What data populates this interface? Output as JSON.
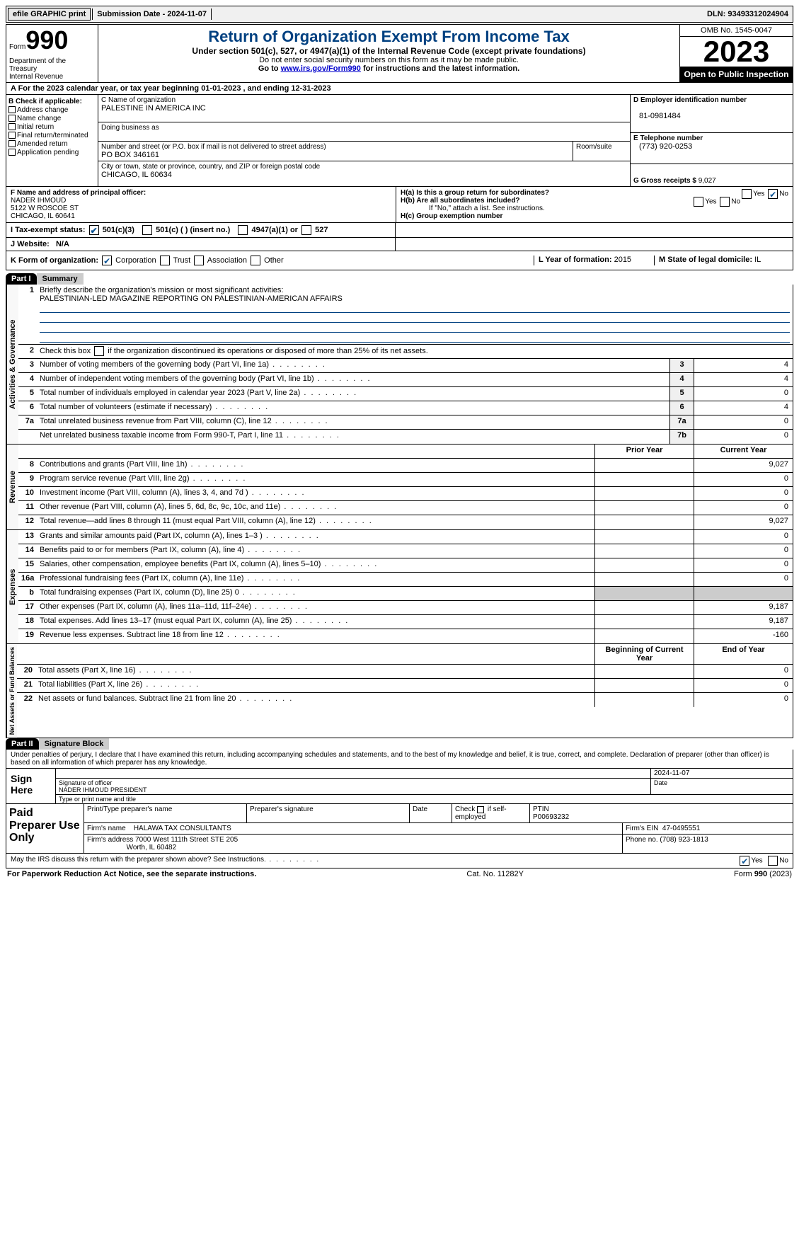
{
  "topbar": {
    "efile": "efile GRAPHIC print",
    "submission": "Submission Date - 2024-11-07",
    "dln": "DLN: 93493312024904"
  },
  "header": {
    "form_label": "Form",
    "form_num": "990",
    "dept": "Department of the Treasury\nInternal Revenue Service",
    "title": "Return of Organization Exempt From Income Tax",
    "sub1": "Under section 501(c), 527, or 4947(a)(1) of the Internal Revenue Code (except private foundations)",
    "sub2": "Do not enter social security numbers on this form as it may be made public.",
    "sub3_pre": "Go to ",
    "sub3_link": "www.irs.gov/Form990",
    "sub3_post": " for instructions and the latest information.",
    "omb": "OMB No. 1545-0047",
    "year": "2023",
    "open": "Open to Public Inspection"
  },
  "lineA": "A For the 2023 calendar year, or tax year beginning 01-01-2023   , and ending 12-31-2023",
  "colB": {
    "hdr": "B Check if applicable:",
    "items": [
      "Address change",
      "Name change",
      "Initial return",
      "Final return/terminated",
      "Amended return",
      "Application pending"
    ]
  },
  "colC": {
    "name_lab": "C Name of organization",
    "name": "PALESTINE IN AMERICA INC",
    "dba_lab": "Doing business as",
    "dba": "",
    "addr_lab": "Number and street (or P.O. box if mail is not delivered to street address)",
    "room_lab": "Room/suite",
    "addr": "PO BOX 346161",
    "city_lab": "City or town, state or province, country, and ZIP or foreign postal code",
    "city": "CHICAGO, IL  60634"
  },
  "colD": {
    "ein_lab": "D Employer identification number",
    "ein": "81-0981484",
    "phone_lab": "E Telephone number",
    "phone": "(773) 920-0253",
    "gross_lab": "G Gross receipts $",
    "gross": "9,027"
  },
  "secF": {
    "lab": "F  Name and address of principal officer:",
    "name": "NADER IHMOUD",
    "addr1": "5122 W ROSCOE ST",
    "addr2": "CHICAGO, IL  60641"
  },
  "secH": {
    "a": "H(a)  Is this a group return for subordinates?",
    "a_yes": "Yes",
    "a_no": "No",
    "a_checked": "no",
    "b": "H(b)  Are all subordinates included?",
    "b_yes": "Yes",
    "b_no": "No",
    "b_note": "If \"No,\" attach a list. See instructions.",
    "c": "H(c)  Group exemption number"
  },
  "rowI": {
    "lab": "I   Tax-exempt status:",
    "v1": "501(c)(3)",
    "v2": "501(c) (  ) (insert no.)",
    "v3": "4947(a)(1) or",
    "v4": "527",
    "checked": "501c3"
  },
  "rowJ": {
    "lab": "J   Website:",
    "val": "N/A"
  },
  "rowK": {
    "lab": "K Form of organization:",
    "opts": [
      "Corporation",
      "Trust",
      "Association",
      "Other"
    ],
    "checked": "Corporation"
  },
  "rowL": {
    "lab": "L Year of formation:",
    "val": "2015"
  },
  "rowM": {
    "lab": "M State of legal domicile:",
    "val": "IL"
  },
  "part1": {
    "hdr": "Part I",
    "title": "Summary"
  },
  "summary": {
    "line1_lab": "Briefly describe the organization's mission or most significant activities:",
    "line1_val": "PALESTINIAN-LED MAGAZINE REPORTING ON PALESTINIAN-AMERICAN AFFAIRS",
    "line2": "Check this box      if the organization discontinued its operations or disposed of more than 25% of its net assets.",
    "rows_gov": [
      {
        "n": "3",
        "t": "Number of voting members of the governing body (Part VI, line 1a)",
        "box": "3",
        "v": "4"
      },
      {
        "n": "4",
        "t": "Number of independent voting members of the governing body (Part VI, line 1b)",
        "box": "4",
        "v": "4"
      },
      {
        "n": "5",
        "t": "Total number of individuals employed in calendar year 2023 (Part V, line 2a)",
        "box": "5",
        "v": "0"
      },
      {
        "n": "6",
        "t": "Total number of volunteers (estimate if necessary)",
        "box": "6",
        "v": "4"
      },
      {
        "n": "7a",
        "t": "Total unrelated business revenue from Part VIII, column (C), line 12",
        "box": "7a",
        "v": "0"
      },
      {
        "n": "",
        "t": "Net unrelated business taxable income from Form 990-T, Part I, line 11",
        "box": "7b",
        "v": "0"
      }
    ],
    "hdr_prior": "Prior Year",
    "hdr_curr": "Current Year",
    "rows_rev": [
      {
        "n": "8",
        "t": "Contributions and grants (Part VIII, line 1h)",
        "p": "",
        "c": "9,027"
      },
      {
        "n": "9",
        "t": "Program service revenue (Part VIII, line 2g)",
        "p": "",
        "c": "0"
      },
      {
        "n": "10",
        "t": "Investment income (Part VIII, column (A), lines 3, 4, and 7d )",
        "p": "",
        "c": "0"
      },
      {
        "n": "11",
        "t": "Other revenue (Part VIII, column (A), lines 5, 6d, 8c, 9c, 10c, and 11e)",
        "p": "",
        "c": "0"
      },
      {
        "n": "12",
        "t": "Total revenue—add lines 8 through 11 (must equal Part VIII, column (A), line 12)",
        "p": "",
        "c": "9,027"
      }
    ],
    "rows_exp": [
      {
        "n": "13",
        "t": "Grants and similar amounts paid (Part IX, column (A), lines 1–3 )",
        "p": "",
        "c": "0"
      },
      {
        "n": "14",
        "t": "Benefits paid to or for members (Part IX, column (A), line 4)",
        "p": "",
        "c": "0"
      },
      {
        "n": "15",
        "t": "Salaries, other compensation, employee benefits (Part IX, column (A), lines 5–10)",
        "p": "",
        "c": "0"
      },
      {
        "n": "16a",
        "t": "Professional fundraising fees (Part IX, column (A), line 11e)",
        "p": "",
        "c": "0"
      },
      {
        "n": "b",
        "t": "Total fundraising expenses (Part IX, column (D), line 25) 0",
        "p": "shade",
        "c": "shade"
      },
      {
        "n": "17",
        "t": "Other expenses (Part IX, column (A), lines 11a–11d, 11f–24e)",
        "p": "",
        "c": "9,187"
      },
      {
        "n": "18",
        "t": "Total expenses. Add lines 13–17 (must equal Part IX, column (A), line 25)",
        "p": "",
        "c": "9,187"
      },
      {
        "n": "19",
        "t": "Revenue less expenses. Subtract line 18 from line 12",
        "p": "",
        "c": "-160"
      }
    ],
    "hdr_beg": "Beginning of Current Year",
    "hdr_end": "End of Year",
    "rows_net": [
      {
        "n": "20",
        "t": "Total assets (Part X, line 16)",
        "p": "",
        "c": "0"
      },
      {
        "n": "21",
        "t": "Total liabilities (Part X, line 26)",
        "p": "",
        "c": "0"
      },
      {
        "n": "22",
        "t": "Net assets or fund balances. Subtract line 21 from line 20",
        "p": "",
        "c": "0"
      }
    ]
  },
  "vlabels": {
    "gov": "Activities & Governance",
    "rev": "Revenue",
    "exp": "Expenses",
    "net": "Net Assets or Fund Balances"
  },
  "part2": {
    "hdr": "Part II",
    "title": "Signature Block"
  },
  "sig": {
    "decl": "Under penalties of perjury, I declare that I have examined this return, including accompanying schedules and statements, and to the best of my knowledge and belief, it is true, correct, and complete. Declaration of preparer (other than officer) is based on all information of which preparer has any knowledge.",
    "sign_here": "Sign Here",
    "date": "2024-11-07",
    "officer_sig_lab": "Signature of officer",
    "officer": "NADER IHMOUD PRESIDENT",
    "officer_lab": "Type or print name and title",
    "date_lab": "Date"
  },
  "prep": {
    "hdr": "Paid Preparer Use Only",
    "c1": "Print/Type preparer's name",
    "c2": "Preparer's signature",
    "c3": "Date",
    "c4": "Check        if self-employed",
    "c5_lab": "PTIN",
    "c5": "P00693232",
    "firm_lab": "Firm's name",
    "firm": "HALAWA TAX CONSULTANTS",
    "ein_lab": "Firm's EIN",
    "ein": "47-0495551",
    "addr_lab": "Firm's address",
    "addr1": "7000 West 111th Street STE 205",
    "addr2": "Worth, IL  60482",
    "phone_lab": "Phone no.",
    "phone": "(708) 923-1813",
    "discuss": "May the IRS discuss this return with the preparer shown above? See Instructions.",
    "discuss_checked": "yes"
  },
  "footer": {
    "left": "For Paperwork Reduction Act Notice, see the separate instructions.",
    "mid": "Cat. No. 11282Y",
    "right_pre": "Form ",
    "right_b": "990",
    "right_post": " (2023)"
  },
  "colors": {
    "title": "#004080",
    "link": "#0000cc",
    "checked": "#0b5394"
  }
}
